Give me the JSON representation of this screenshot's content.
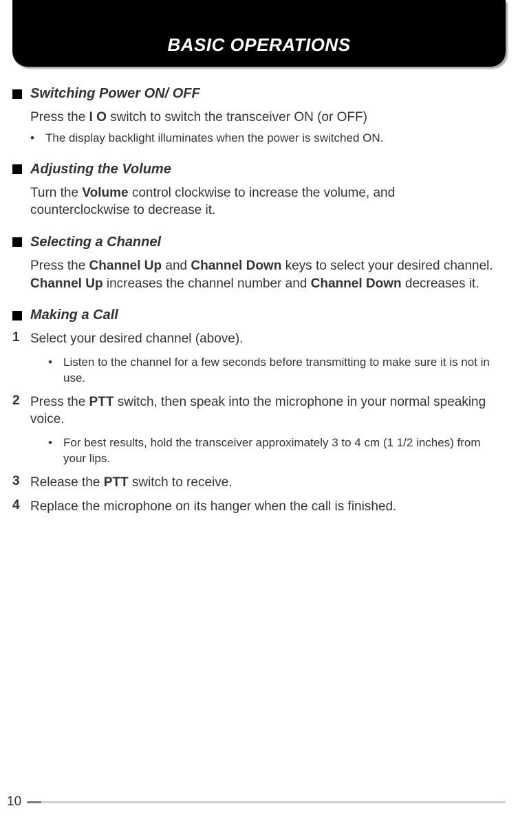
{
  "header": {
    "title": "BASIC OPERATIONS"
  },
  "sections": {
    "s1": {
      "title": "Switching Power ON/ OFF",
      "body_pre": "Press the ",
      "body_bold": "I O",
      "body_post": " switch to switch the transceiver ON (or OFF)",
      "bullet": "The display backlight illuminates when the power is switched ON."
    },
    "s2": {
      "title": "Adjusting the Volume",
      "body_pre": "Turn the ",
      "body_bold": "Volume",
      "body_post": " control clockwise to increase the volume, and counterclockwise to decrease it."
    },
    "s3": {
      "title": "Selecting a Channel",
      "p1_pre": "Press the ",
      "p1_b1": "Channel Up",
      "p1_mid1": " and ",
      "p1_b2": "Channel Down",
      "p1_mid2": " keys to select your desired channel.  ",
      "p1_b3": "Channel Up",
      "p1_mid3": " increases the channel number and ",
      "p1_b4": "Channel Down",
      "p1_post": " decreases it."
    },
    "s4": {
      "title": "Making a Call",
      "n1": "1",
      "t1": "Select your desired channel (above).",
      "b1": "Listen to the channel for a few seconds before transmitting to make sure it is not in use.",
      "n2": "2",
      "t2_pre": "Press the ",
      "t2_b": "PTT",
      "t2_post": " switch, then speak into the microphone in your normal speaking voice.",
      "b2": "For best results, hold the transceiver approximately 3 to 4 cm (1 1/2 inches) from your lips.",
      "n3": "3",
      "t3_pre": "Release the ",
      "t3_b": "PTT",
      "t3_post": " switch to receive.",
      "n4": "4",
      "t4": "Replace the microphone on its hanger when the call is finished."
    }
  },
  "footer": {
    "page": "10"
  }
}
